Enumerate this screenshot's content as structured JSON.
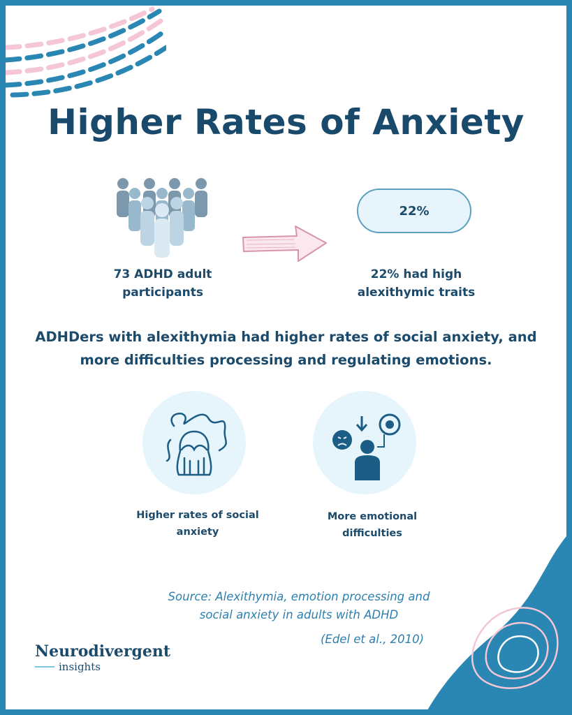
{
  "title": "Higher Rates of Anxiety",
  "participants": {
    "label": "73 ADHD adult participants"
  },
  "result": {
    "percent": "22%",
    "label": "22% had high alexithymic traits"
  },
  "summary": "ADHDers with alexithymia had higher rates of social anxiety, and more difficulties processing and regulating emotions.",
  "findings": [
    {
      "label": "Higher rates of social anxiety",
      "icon": "anxious-person-icon"
    },
    {
      "label": "More emotional difficulties",
      "icon": "emotion-regulation-icon"
    }
  ],
  "source": {
    "text": "Source: Alexithymia, emotion processing and social anxiety in adults with ADHD",
    "citation": "(Edel et al., 2010)"
  },
  "brand": {
    "name": "Neurodivergent",
    "sub": "insights"
  },
  "colors": {
    "navy": "#1c4a6b",
    "frame": "#2a86b2",
    "light": "#e6f4fb",
    "pink": "#f4c6d6"
  }
}
